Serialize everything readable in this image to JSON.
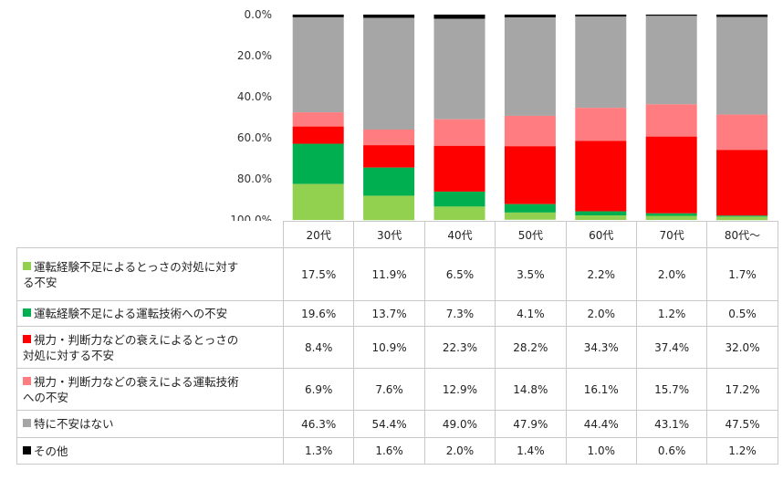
{
  "chart_data": {
    "type": "bar",
    "stacked": true,
    "y_axis_position": "top-to-bottom",
    "ylim": [
      0,
      100
    ],
    "y_ticks": [
      "0.0%",
      "20.0%",
      "40.0%",
      "60.0%",
      "80.0%",
      "100.0%"
    ],
    "categories": [
      "20代",
      "30代",
      "40代",
      "50代",
      "60代",
      "70代",
      "80代〜"
    ],
    "series": [
      {
        "name": "運転経験不足によるとっさの対処に対する不安",
        "color": "#92d050",
        "values": [
          17.5,
          11.9,
          6.5,
          3.5,
          2.2,
          2.0,
          1.7
        ],
        "labels": [
          "17.5%",
          "11.9%",
          "6.5%",
          "3.5%",
          "2.2%",
          "2.0%",
          "1.7%"
        ]
      },
      {
        "name": "運転経験不足による運転技術への不安",
        "color": "#00b050",
        "values": [
          19.6,
          13.7,
          7.3,
          4.1,
          2.0,
          1.2,
          0.5
        ],
        "labels": [
          "19.6%",
          "13.7%",
          "7.3%",
          "4.1%",
          "2.0%",
          "1.2%",
          "0.5%"
        ]
      },
      {
        "name": "視力・判断力などの衰えによるとっさの対処に対する不安",
        "color": "#ff0000",
        "values": [
          8.4,
          10.9,
          22.3,
          28.2,
          34.3,
          37.4,
          32.0
        ],
        "labels": [
          "8.4%",
          "10.9%",
          "22.3%",
          "28.2%",
          "34.3%",
          "37.4%",
          "32.0%"
        ]
      },
      {
        "name": "視力・判断力などの衰えによる運転技術への不安",
        "color": "#ff7c80",
        "values": [
          6.9,
          7.6,
          12.9,
          14.8,
          16.1,
          15.7,
          17.2
        ],
        "labels": [
          "6.9%",
          "7.6%",
          "12.9%",
          "14.8%",
          "16.1%",
          "15.7%",
          "17.2%"
        ]
      },
      {
        "name": "特に不安はない",
        "color": "#a6a6a6",
        "values": [
          46.3,
          54.4,
          49.0,
          47.9,
          44.4,
          43.1,
          47.5
        ],
        "labels": [
          "46.3%",
          "54.4%",
          "49.0%",
          "47.9%",
          "44.4%",
          "43.1%",
          "47.5%"
        ]
      },
      {
        "name": "その他",
        "color": "#000000",
        "values": [
          1.3,
          1.6,
          2.0,
          1.4,
          1.0,
          0.6,
          1.2
        ],
        "labels": [
          "1.3%",
          "1.6%",
          "2.0%",
          "1.4%",
          "1.0%",
          "0.6%",
          "1.2%"
        ]
      }
    ],
    "series_label_lines": [
      [
        "運転経験不足によるとっさの対処に対す",
        "る不安"
      ],
      [
        "運転経験不足による運転技術への不安"
      ],
      [
        "視力・判断力などの衰えによるとっさの",
        "対処に対する不安"
      ],
      [
        "視力・判断力などの衰えによる運転技術",
        "への不安"
      ],
      [
        "特に不安はない"
      ],
      [
        "その他"
      ]
    ]
  }
}
